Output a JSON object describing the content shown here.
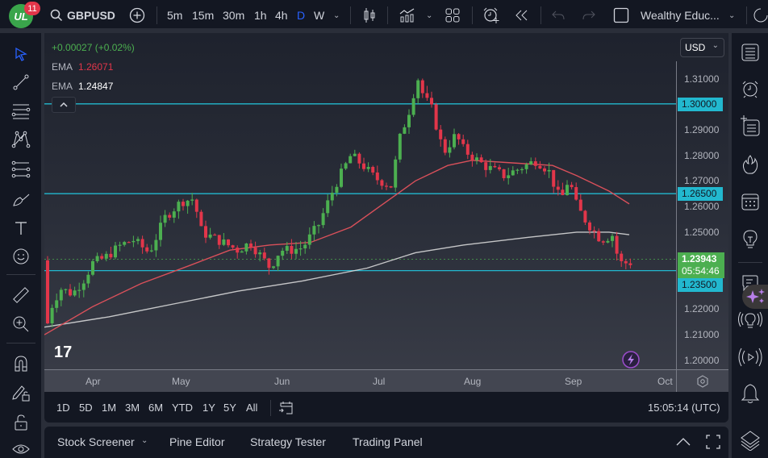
{
  "topbar": {
    "logo_text": "UL",
    "notification_count": "11",
    "symbol": "GBPUSD",
    "intervals": [
      "5m",
      "15m",
      "30m",
      "1h",
      "4h",
      "D",
      "W"
    ],
    "active_interval": "D",
    "layout_name": "Wealthy Educ..."
  },
  "legend": {
    "change": "+0.00027 (+0.02%)",
    "ema1_label": "EMA",
    "ema1_value": "1.26071",
    "ema2_label": "EMA",
    "ema2_value": "1.24847",
    "collapse_icon": "^"
  },
  "pricescale": {
    "currency": "USD",
    "ticks": [
      "1.31000",
      "1.29000",
      "1.28000",
      "1.27000",
      "1.26000",
      "1.25000",
      "1.22000",
      "1.21000",
      "1.20000"
    ],
    "tags": [
      {
        "value": "1.30000",
        "color": "#22b8cf"
      },
      {
        "value": "1.26500",
        "color": "#22b8cf"
      },
      {
        "value": "1.23500",
        "color": "#22b8cf"
      }
    ],
    "last_price": "1.23943",
    "countdown": "05:54:46",
    "last_price_color": "#4caf50"
  },
  "timescale": {
    "labels": [
      "Apr",
      "May",
      "Jun",
      "Jul",
      "Aug",
      "Sep",
      "Oct"
    ]
  },
  "rangebar": {
    "ranges": [
      "1D",
      "5D",
      "1M",
      "3M",
      "6M",
      "YTD",
      "1Y",
      "5Y",
      "All"
    ],
    "clock": "15:05:14 (UTC)"
  },
  "bottombar": {
    "tabs": [
      "Stock Screener",
      "Pine Editor",
      "Strategy Tester",
      "Trading Panel"
    ]
  },
  "colors": {
    "up": "#4caf50",
    "down": "#e2364a",
    "hline": "#22b8cf",
    "ema_fast": "#d9505a",
    "ema_slow": "#e0e0e0"
  },
  "chart_data": {
    "type": "candlestick",
    "title": "GBPUSD, D",
    "ylim": [
      1.195,
      1.315
    ],
    "horizontal_lines": [
      1.3,
      1.265,
      1.235
    ],
    "last_price": 1.23943,
    "ema_fast_last": 1.26071,
    "ema_slow_last": 1.24847,
    "months": [
      "Apr",
      "May",
      "Jun",
      "Jul",
      "Aug",
      "Sep",
      "Oct"
    ]
  }
}
